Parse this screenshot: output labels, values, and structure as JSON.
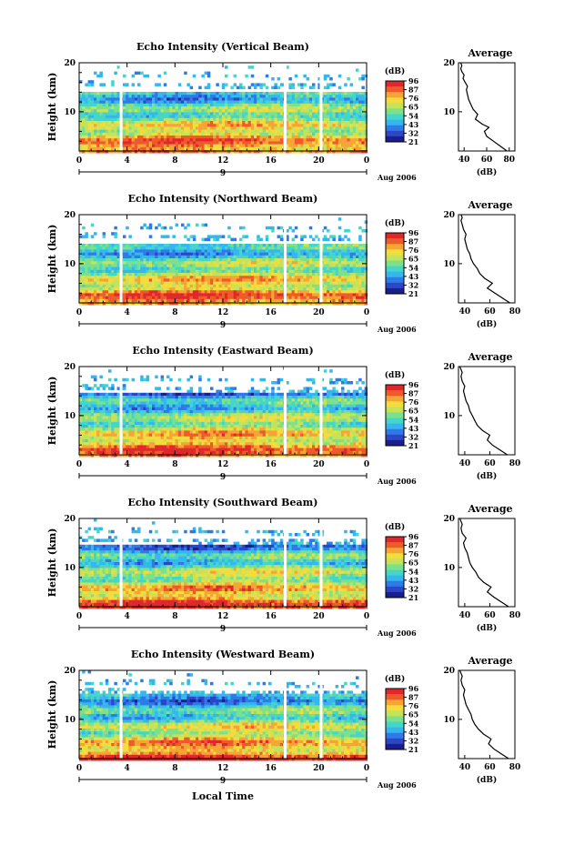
{
  "figure": {
    "xlabel": "Local Time",
    "date_label": "Aug 2006",
    "mid_date_tick": "9",
    "colorbar_unit": "(dB)",
    "profile_title": "Average",
    "profile_xlabel": "(dB)"
  },
  "colors": {
    "scale": [
      "#1a1f8c",
      "#2c46c8",
      "#2e7be8",
      "#35b6ef",
      "#44d6c9",
      "#7de08a",
      "#c4e25a",
      "#f2dc3e",
      "#f6a535",
      "#ef5a2a",
      "#e0282c"
    ],
    "gap": "#ffffff",
    "axis": "#000000"
  },
  "chart_data": [
    {
      "type": "heatmap",
      "title": "Echo Intensity (Vertical Beam)",
      "ylabel": "Height (km)",
      "x_ticks": [
        "0",
        "4",
        "8",
        "12",
        "16",
        "20",
        "0"
      ],
      "xlim": [
        0,
        24
      ],
      "y_ticks": [
        "20",
        "10"
      ],
      "ylim": [
        2,
        20
      ],
      "colorbar_ticks": [
        "96",
        "87",
        "76",
        "65",
        "54",
        "43",
        "32",
        "21"
      ],
      "gap_times": [
        3.5,
        17.2,
        20.2
      ],
      "profile": {
        "title": "Average",
        "xlabel": "(dB)",
        "x_ticks": [
          "40",
          "60",
          "80"
        ],
        "xlim": [
          35,
          85
        ],
        "y_ticks": [
          "20",
          "10"
        ],
        "ylim": [
          2,
          20
        ],
        "x": [
          78,
          72,
          66,
          60,
          58,
          62,
          56,
          50,
          52,
          48,
          46,
          44,
          43,
          42,
          43,
          41,
          39,
          40,
          38,
          37,
          38,
          37
        ],
        "y": [
          2,
          3,
          4,
          5,
          6,
          6.8,
          7.5,
          8.5,
          9.5,
          10.5,
          11.5,
          12.5,
          13.5,
          14.5,
          15.2,
          16,
          16.8,
          17.5,
          18.2,
          18.8,
          19.4,
          20
        ]
      }
    },
    {
      "type": "heatmap",
      "title": "Echo Intensity (Northward Beam)",
      "ylabel": "Height (km)",
      "x_ticks": [
        "0",
        "4",
        "8",
        "12",
        "16",
        "20",
        "0"
      ],
      "xlim": [
        0,
        24
      ],
      "y_ticks": [
        "20",
        "10"
      ],
      "ylim": [
        2,
        20
      ],
      "colorbar_ticks": [
        "96",
        "87",
        "76",
        "65",
        "54",
        "43",
        "32",
        "21"
      ],
      "gap_times": [
        3.5,
        17.2,
        20.2
      ],
      "profile": {
        "title": "Average",
        "xlabel": "(dB)",
        "x_ticks": [
          "40",
          "60",
          "80"
        ],
        "xlim": [
          35,
          80
        ],
        "y_ticks": [
          "20",
          "10"
        ],
        "ylim": [
          2,
          20
        ],
        "x": [
          76,
          70,
          64,
          58,
          62,
          56,
          52,
          50,
          47,
          45,
          44,
          42,
          41,
          40,
          41,
          39,
          38,
          37,
          38,
          37
        ],
        "y": [
          2,
          3,
          4,
          5,
          6,
          7,
          8,
          9,
          10,
          11,
          12,
          13,
          14,
          15,
          16,
          17,
          18,
          18.8,
          19.4,
          20
        ]
      }
    },
    {
      "type": "heatmap",
      "title": "Echo Intensity (Eastward Beam)",
      "ylabel": "Height (km)",
      "x_ticks": [
        "0",
        "4",
        "8",
        "12",
        "16",
        "20",
        "0"
      ],
      "xlim": [
        0,
        24
      ],
      "y_ticks": [
        "20",
        "10"
      ],
      "ylim": [
        2,
        20
      ],
      "colorbar_ticks": [
        "96",
        "87",
        "76",
        "65",
        "54",
        "43",
        "32",
        "21"
      ],
      "gap_times": [
        3.5,
        17.2,
        20.2
      ],
      "profile": {
        "title": "Average",
        "xlabel": "(dB)",
        "x_ticks": [
          "40",
          "60",
          "80"
        ],
        "xlim": [
          35,
          80
        ],
        "y_ticks": [
          "20",
          "10"
        ],
        "ylim": [
          2,
          20
        ],
        "x": [
          74,
          68,
          62,
          58,
          60,
          54,
          50,
          48,
          46,
          44,
          43,
          41,
          40,
          39,
          40,
          38,
          37,
          38,
          37,
          36
        ],
        "y": [
          2,
          3,
          4,
          5,
          6,
          7,
          8,
          9,
          10,
          11,
          12,
          13,
          14,
          15,
          16,
          17,
          18,
          18.8,
          19.4,
          20
        ]
      }
    },
    {
      "type": "heatmap",
      "title": "Echo Intensity (Southward Beam)",
      "ylabel": "Height (km)",
      "x_ticks": [
        "0",
        "4",
        "8",
        "12",
        "16",
        "20",
        "0"
      ],
      "xlim": [
        0,
        24
      ],
      "y_ticks": [
        "20",
        "10"
      ],
      "ylim": [
        2,
        20
      ],
      "colorbar_ticks": [
        "96",
        "87",
        "76",
        "65",
        "54",
        "43",
        "32",
        "21"
      ],
      "gap_times": [
        3.5,
        17.2,
        20.2
      ],
      "profile": {
        "title": "Average",
        "xlabel": "(dB)",
        "x_ticks": [
          "40",
          "60",
          "80"
        ],
        "xlim": [
          35,
          80
        ],
        "y_ticks": [
          "20",
          "10"
        ],
        "ylim": [
          2,
          20
        ],
        "x": [
          75,
          69,
          63,
          58,
          61,
          55,
          51,
          49,
          46,
          44,
          43,
          42,
          40,
          39,
          41,
          38,
          37,
          38,
          37,
          36
        ],
        "y": [
          2,
          3,
          4,
          5,
          6,
          7,
          8,
          9,
          10,
          11,
          12,
          13,
          14,
          15,
          16,
          17,
          18,
          18.8,
          19.4,
          20
        ]
      }
    },
    {
      "type": "heatmap",
      "title": "Echo Intensity (Westward Beam)",
      "ylabel": "Height (km)",
      "x_ticks": [
        "0",
        "4",
        "8",
        "12",
        "16",
        "20",
        "0"
      ],
      "xlim": [
        0,
        24
      ],
      "y_ticks": [
        "20",
        "10"
      ],
      "ylim": [
        2,
        20
      ],
      "colorbar_ticks": [
        "96",
        "87",
        "76",
        "65",
        "54",
        "43",
        "32",
        "21"
      ],
      "gap_times": [
        3.5,
        17.2,
        20.2
      ],
      "profile": {
        "title": "Average",
        "xlabel": "(dB)",
        "x_ticks": [
          "40",
          "60",
          "80"
        ],
        "xlim": [
          35,
          80
        ],
        "y_ticks": [
          "20",
          "10"
        ],
        "ylim": [
          2,
          20
        ],
        "x": [
          75,
          69,
          63,
          59,
          61,
          55,
          51,
          48,
          46,
          45,
          43,
          41,
          40,
          39,
          40,
          38,
          37,
          38,
          37,
          36
        ],
        "y": [
          2,
          3,
          4,
          5,
          6,
          7,
          8,
          9,
          10,
          11,
          12,
          13,
          14,
          15,
          16,
          17,
          18,
          18.8,
          19.4,
          20
        ]
      }
    }
  ]
}
